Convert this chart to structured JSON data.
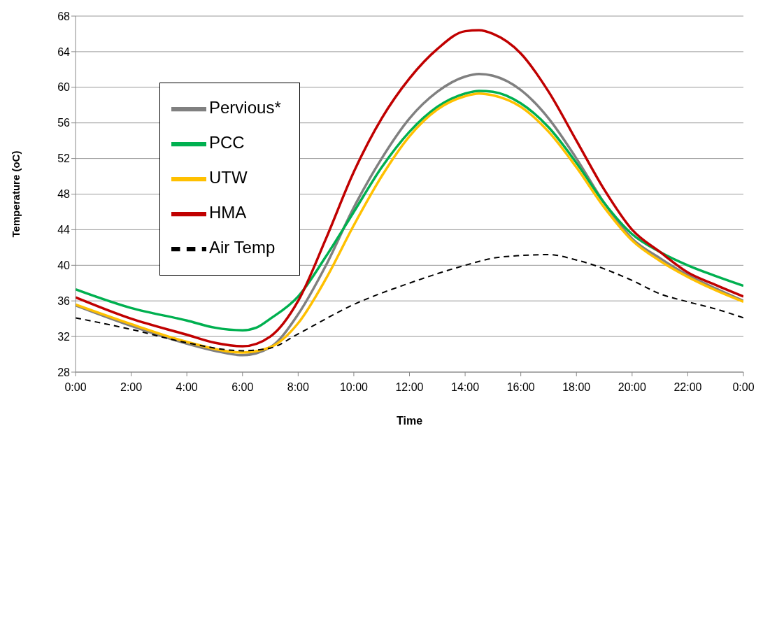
{
  "chart_data": {
    "type": "line",
    "xlabel": "Time",
    "ylabel": "Temperature (oC)",
    "xlim": [
      0,
      24
    ],
    "ylim": [
      28,
      68
    ],
    "xticks": [
      {
        "value": 0,
        "label": "0:00"
      },
      {
        "value": 2,
        "label": "2:00"
      },
      {
        "value": 4,
        "label": "4:00"
      },
      {
        "value": 6,
        "label": "6:00"
      },
      {
        "value": 8,
        "label": "8:00"
      },
      {
        "value": 10,
        "label": "10:00"
      },
      {
        "value": 12,
        "label": "12:00"
      },
      {
        "value": 14,
        "label": "14:00"
      },
      {
        "value": 16,
        "label": "16:00"
      },
      {
        "value": 18,
        "label": "18:00"
      },
      {
        "value": 20,
        "label": "20:00"
      },
      {
        "value": 22,
        "label": "22:00"
      },
      {
        "value": 24,
        "label": "0:00"
      }
    ],
    "yticks": [
      28,
      32,
      36,
      40,
      44,
      48,
      52,
      56,
      60,
      64,
      68
    ],
    "grid": "y",
    "legend": "top left",
    "series": [
      {
        "name": "Pervious*",
        "color": "#808080",
        "x": [
          0,
          2,
          4,
          5,
          6,
          7,
          8,
          9,
          10,
          11,
          12,
          13,
          14,
          14.5,
          15,
          16,
          17,
          18,
          19,
          20,
          21,
          22,
          23,
          24
        ],
        "values": [
          35.5,
          33.2,
          31.2,
          30.4,
          29.9,
          30.8,
          34.5,
          40,
          46.5,
          52,
          56.5,
          59.5,
          61.2,
          61.5,
          61.3,
          59.7,
          56.5,
          52,
          47,
          43,
          40.8,
          38.9,
          37.4,
          36
        ]
      },
      {
        "name": "PCC",
        "color": "#00b050",
        "x": [
          0,
          2,
          4,
          5,
          6,
          6.5,
          7,
          8,
          9,
          10,
          11,
          12,
          13,
          14,
          14.5,
          15,
          16,
          17,
          18,
          19,
          20,
          21,
          22,
          23,
          24
        ],
        "values": [
          37.3,
          35.2,
          33.8,
          33,
          32.7,
          33,
          34,
          36.5,
          41,
          46,
          51,
          55,
          57.8,
          59.3,
          59.6,
          59.5,
          58.2,
          55.5,
          51.5,
          47,
          43.5,
          41.5,
          40,
          38.8,
          37.7
        ]
      },
      {
        "name": "UTW",
        "color": "#ffc000",
        "x": [
          0,
          2,
          4,
          6,
          7,
          8,
          9,
          10,
          11,
          12,
          13,
          14,
          14.5,
          15,
          16,
          17,
          18,
          19,
          20,
          21,
          22,
          23,
          24
        ],
        "values": [
          35.6,
          33.4,
          31.4,
          30.2,
          30.8,
          33.5,
          38.5,
          44.5,
          50,
          54.5,
          57.5,
          59,
          59.3,
          59.1,
          57.8,
          55,
          51,
          46.5,
          42.8,
          40.5,
          38.7,
          37.2,
          35.9
        ]
      },
      {
        "name": "HMA",
        "color": "#c00000",
        "x": [
          0,
          2,
          4,
          5,
          6,
          7,
          8,
          9,
          10,
          11,
          12,
          13,
          14,
          14.5,
          15,
          16,
          17,
          18,
          19,
          20,
          21,
          22,
          23,
          24
        ],
        "values": [
          36.4,
          34,
          32.2,
          31.3,
          30.9,
          32,
          36,
          43,
          50.5,
          56.5,
          61,
          64.3,
          66.3,
          66.4,
          66,
          63.8,
          59.5,
          54,
          48.5,
          44,
          41.5,
          39.2,
          37.8,
          36.5
        ]
      },
      {
        "name": "Air Temp",
        "color": "#000000",
        "line_style": "dashed",
        "x": [
          0,
          2,
          4,
          6,
          7,
          8,
          10,
          12,
          14,
          15,
          16,
          17,
          18,
          20,
          21,
          22,
          23,
          24
        ],
        "values": [
          34.1,
          32.8,
          31.3,
          30.4,
          30.7,
          32.3,
          35.6,
          38,
          40,
          40.8,
          41.1,
          41.2,
          40.6,
          38.3,
          36.8,
          35.9,
          35.1,
          34.1
        ]
      }
    ]
  }
}
